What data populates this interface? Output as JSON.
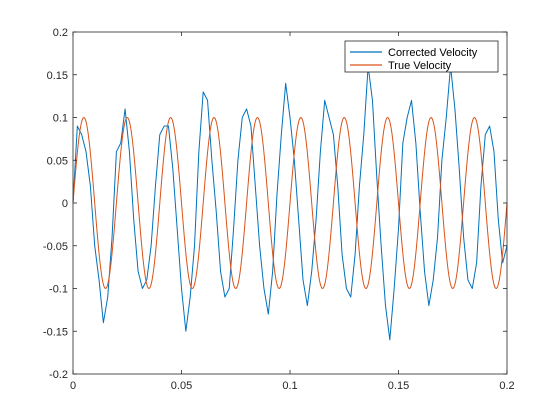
{
  "chart_data": {
    "type": "line",
    "title": "",
    "xlabel": "",
    "ylabel": "",
    "xlim": [
      0,
      0.2
    ],
    "ylim": [
      -0.2,
      0.2
    ],
    "x_ticks": [
      0,
      0.05,
      0.1,
      0.15,
      0.2
    ],
    "x_tick_labels": [
      "0",
      "0.05",
      "0.1",
      "0.15",
      "0.2"
    ],
    "y_ticks": [
      -0.2,
      -0.15,
      -0.1,
      -0.05,
      0,
      0.05,
      0.1,
      0.15,
      0.2
    ],
    "y_tick_labels": [
      "-0.2",
      "-0.15",
      "-0.1",
      "-0.05",
      "0",
      "0.05",
      "0.1",
      "0.15",
      "0.2"
    ],
    "grid": false,
    "legend_position": "top-right",
    "series": [
      {
        "name": "Corrected Velocity",
        "color": "#0072BD",
        "x": [
          0.0,
          0.002,
          0.004,
          0.006,
          0.008,
          0.01,
          0.012,
          0.014,
          0.016,
          0.018,
          0.02,
          0.022,
          0.024,
          0.026,
          0.028,
          0.03,
          0.032,
          0.034,
          0.036,
          0.038,
          0.04,
          0.042,
          0.044,
          0.046,
          0.048,
          0.05,
          0.052,
          0.054,
          0.056,
          0.058,
          0.06,
          0.062,
          0.064,
          0.066,
          0.068,
          0.07,
          0.072,
          0.074,
          0.076,
          0.078,
          0.08,
          0.082,
          0.084,
          0.086,
          0.088,
          0.09,
          0.092,
          0.094,
          0.096,
          0.098,
          0.1,
          0.102,
          0.104,
          0.106,
          0.108,
          0.11,
          0.112,
          0.114,
          0.116,
          0.118,
          0.12,
          0.122,
          0.124,
          0.126,
          0.128,
          0.13,
          0.132,
          0.134,
          0.136,
          0.138,
          0.14,
          0.142,
          0.144,
          0.146,
          0.148,
          0.15,
          0.152,
          0.154,
          0.156,
          0.158,
          0.16,
          0.162,
          0.164,
          0.166,
          0.168,
          0.17,
          0.172,
          0.174,
          0.176,
          0.178,
          0.18,
          0.182,
          0.184,
          0.186,
          0.188,
          0.19,
          0.192,
          0.194,
          0.196,
          0.198,
          0.2
        ],
        "y": [
          0.0,
          0.09,
          0.08,
          0.06,
          0.02,
          -0.05,
          -0.09,
          -0.14,
          -0.11,
          -0.04,
          0.06,
          0.07,
          0.11,
          0.06,
          -0.02,
          -0.08,
          -0.1,
          -0.09,
          -0.05,
          0.02,
          0.08,
          0.09,
          0.09,
          0.04,
          -0.03,
          -0.1,
          -0.15,
          -0.11,
          -0.05,
          0.06,
          0.13,
          0.12,
          0.05,
          -0.01,
          -0.08,
          -0.11,
          -0.1,
          -0.03,
          0.05,
          0.1,
          0.11,
          0.09,
          0.02,
          -0.05,
          -0.1,
          -0.13,
          -0.08,
          0.01,
          0.08,
          0.14,
          0.1,
          0.05,
          -0.02,
          -0.09,
          -0.12,
          -0.08,
          -0.02,
          0.06,
          0.12,
          0.1,
          0.08,
          0.02,
          -0.06,
          -0.1,
          -0.11,
          -0.06,
          0.02,
          0.08,
          0.16,
          0.12,
          0.03,
          -0.05,
          -0.12,
          -0.16,
          -0.1,
          -0.03,
          0.07,
          0.1,
          0.12,
          0.07,
          -0.01,
          -0.08,
          -0.12,
          -0.09,
          -0.04,
          0.05,
          0.1,
          0.16,
          0.11,
          0.04,
          -0.04,
          -0.09,
          -0.1,
          -0.07,
          0.02,
          0.08,
          0.09,
          0.06,
          -0.02,
          -0.07,
          -0.05
        ]
      },
      {
        "name": "True Velocity",
        "color": "#D95319",
        "amplitude": 0.1,
        "frequency_hz": 50,
        "x_start": 0,
        "x_end": 0.2
      }
    ]
  }
}
